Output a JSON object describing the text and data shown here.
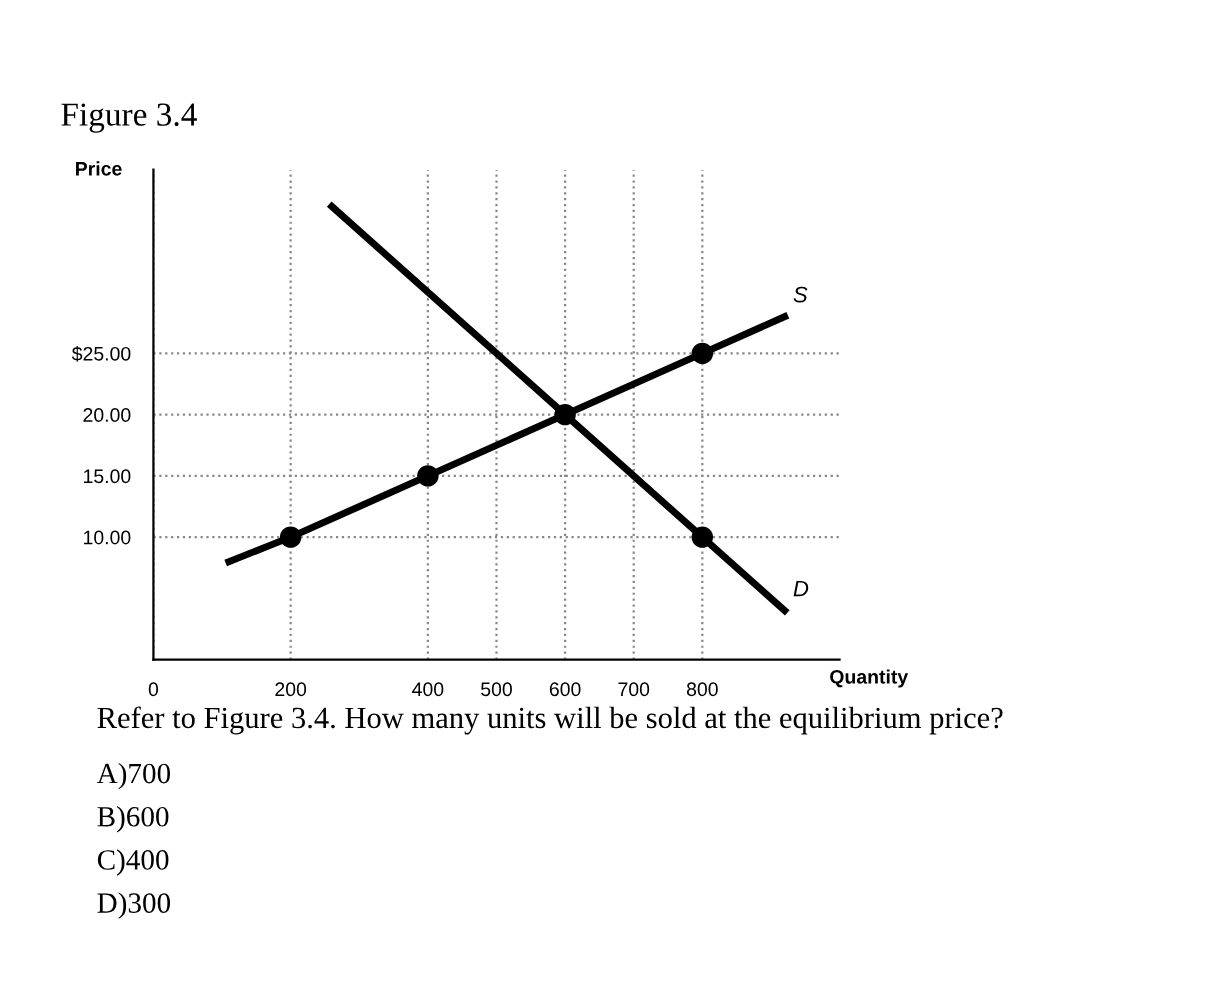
{
  "chart_data": {
    "type": "line",
    "title": "Figure 3.4",
    "xlabel": "Quantity",
    "ylabel": "Price",
    "xlim": [
      0,
      1000
    ],
    "ylim": [
      0,
      40
    ],
    "xticks": [
      {
        "value": 0,
        "label": "0"
      },
      200,
      400,
      500,
      600,
      700,
      800
    ],
    "yticks": [
      {
        "value": 10,
        "label": "10.00"
      },
      {
        "value": 15,
        "label": "15.00"
      },
      {
        "value": 20,
        "label": "20.00"
      },
      {
        "value": 25,
        "label": "$25.00"
      }
    ],
    "grid": true,
    "legend": false,
    "line_style": "solid",
    "series": [
      {
        "name": "S",
        "color": "#000000",
        "x": [
          110,
          200,
          400,
          600,
          800,
          920
        ],
        "values": [
          8,
          10,
          15,
          20,
          25,
          28
        ],
        "marker": "none"
      },
      {
        "name": "D",
        "color": "#000000",
        "x": [
          260,
          600,
          800,
          920
        ],
        "values": [
          37,
          20,
          10,
          4
        ],
        "marker": "none"
      },
      {
        "type": "scatter",
        "color": "#000000",
        "x": [
          200,
          400,
          600,
          800,
          800
        ],
        "values": [
          10,
          15,
          20,
          25,
          10
        ],
        "marker": "circle"
      }
    ],
    "annotations": [
      "Refer to Figure 3.4. How many units will be sold at the equilibrium price?",
      "A)700",
      "B)600",
      "C)400",
      "D)300"
    ]
  }
}
